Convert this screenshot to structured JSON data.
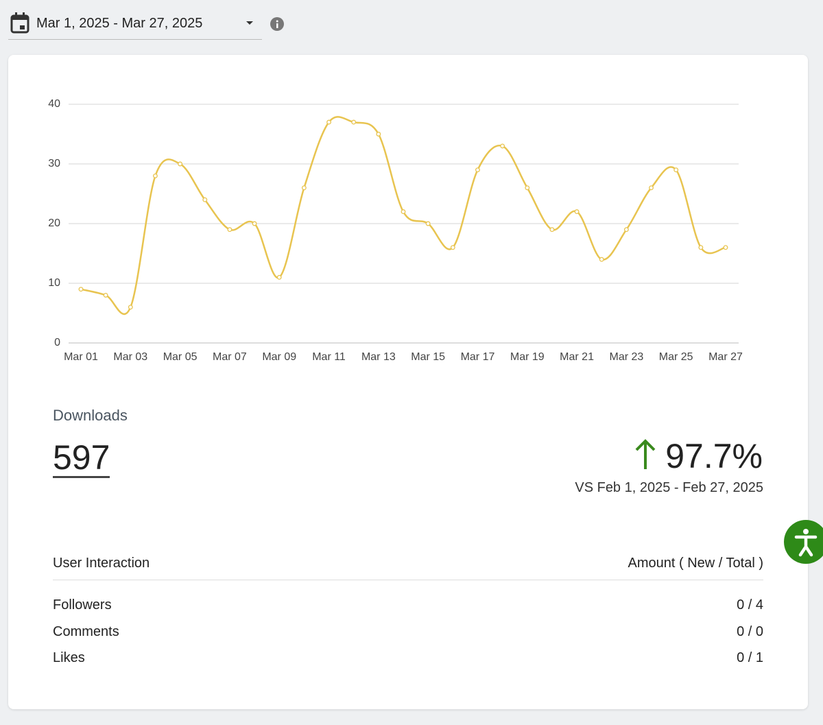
{
  "date_range": "Mar 1, 2025 - Mar 27, 2025",
  "chart_data": {
    "type": "line",
    "categories": [
      "Mar 01",
      null,
      "Mar 03",
      null,
      "Mar 05",
      null,
      "Mar 07",
      null,
      "Mar 09",
      null,
      "Mar 11",
      null,
      "Mar 13",
      null,
      "Mar 15",
      null,
      "Mar 17",
      null,
      "Mar 19",
      null,
      "Mar 21",
      null,
      "Mar 23",
      null,
      "Mar 25",
      null,
      "Mar 27"
    ],
    "values": [
      9,
      8,
      6,
      28,
      30,
      24,
      19,
      20,
      11,
      26,
      37,
      37,
      35,
      22,
      20,
      16,
      29,
      33,
      26,
      19,
      22,
      14,
      19,
      26,
      29,
      16,
      16
    ],
    "color": "#e8c450",
    "ylim": [
      0,
      40
    ],
    "yticks": [
      0,
      10,
      20,
      30,
      40
    ],
    "grid": true
  },
  "summary": {
    "label": "Downloads",
    "total": "597",
    "change": "97.7%",
    "comparison": "VS Feb 1, 2025 - Feb 27, 2025"
  },
  "table": {
    "headers": [
      "User Interaction",
      "Amount ( New / Total )"
    ],
    "rows": [
      [
        "Followers",
        "0 / 4"
      ],
      [
        "Comments",
        "0 / 0"
      ],
      [
        "Likes",
        "0 / 1"
      ]
    ]
  }
}
